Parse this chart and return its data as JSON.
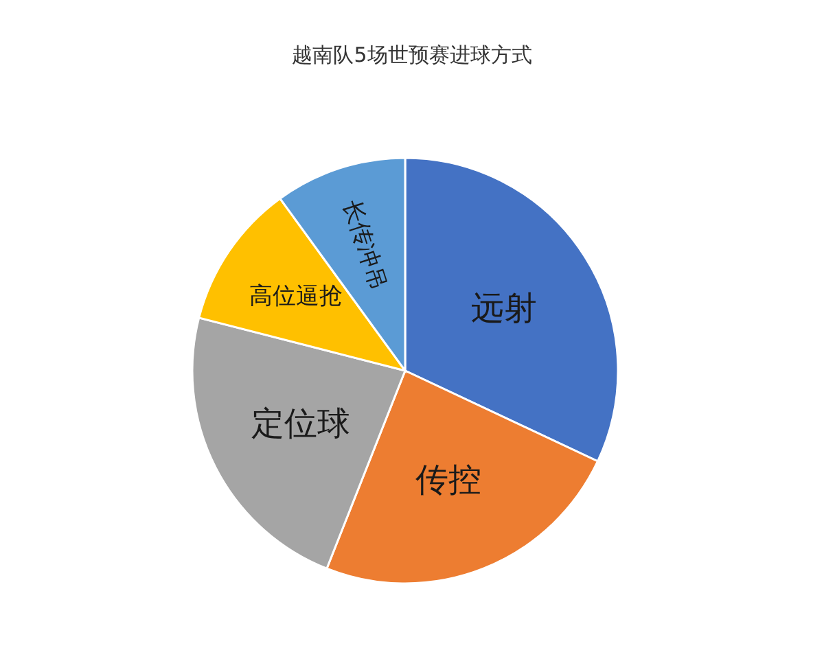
{
  "chart_data": {
    "type": "pie",
    "title": "越南队5场世预赛进球方式",
    "categories": [
      "远射",
      "传控",
      "定位球",
      "高位逼抢",
      "长传冲吊"
    ],
    "values": [
      32,
      24,
      23,
      11,
      10
    ],
    "colors": [
      "#4472c4",
      "#ed7d31",
      "#a5a5a5",
      "#ffc000",
      "#5b9bd5"
    ],
    "legend": false
  }
}
